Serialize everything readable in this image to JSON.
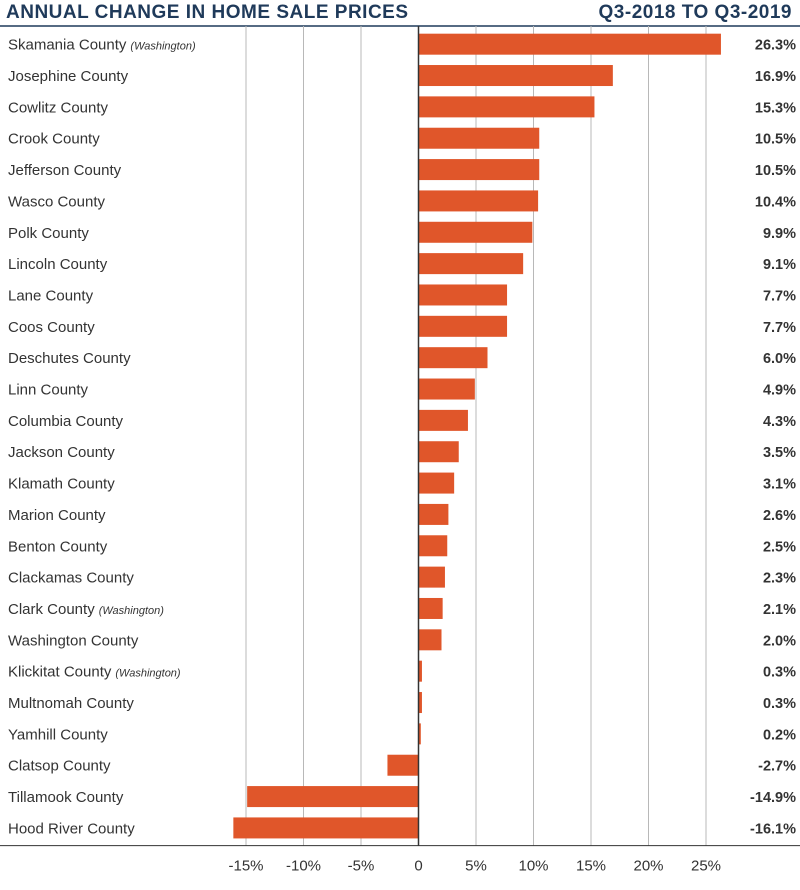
{
  "colors": {
    "bar": "#e0562a",
    "title": "#1f3a5a",
    "text": "#333333",
    "grid": "#b8b8b8",
    "axis": "#333333"
  },
  "chart_data": {
    "type": "bar",
    "orientation": "horizontal",
    "title": "ANNUAL CHANGE IN HOME SALE PRICES",
    "subtitle": "Q3-2018 TO Q3-2019",
    "xlabel": "",
    "ylabel": "",
    "xlim": [
      -17.5,
      29
    ],
    "grid": true,
    "categories": [
      {
        "name": "Skamania County",
        "note": "(Washington)"
      },
      {
        "name": "Josephine County",
        "note": ""
      },
      {
        "name": "Cowlitz County",
        "note": ""
      },
      {
        "name": "Crook County",
        "note": ""
      },
      {
        "name": "Jefferson County",
        "note": ""
      },
      {
        "name": "Wasco County",
        "note": ""
      },
      {
        "name": "Polk County",
        "note": ""
      },
      {
        "name": "Lincoln County",
        "note": ""
      },
      {
        "name": "Lane County",
        "note": ""
      },
      {
        "name": "Coos County",
        "note": ""
      },
      {
        "name": "Deschutes County",
        "note": ""
      },
      {
        "name": "Linn County",
        "note": ""
      },
      {
        "name": "Columbia County",
        "note": ""
      },
      {
        "name": "Jackson County",
        "note": ""
      },
      {
        "name": "Klamath County",
        "note": ""
      },
      {
        "name": "Marion County",
        "note": ""
      },
      {
        "name": "Benton County",
        "note": ""
      },
      {
        "name": "Clackamas County",
        "note": ""
      },
      {
        "name": "Clark County",
        "note": "(Washington)"
      },
      {
        "name": "Washington County",
        "note": ""
      },
      {
        "name": "Klickitat County",
        "note": "(Washington)"
      },
      {
        "name": "Multnomah County",
        "note": ""
      },
      {
        "name": "Yamhill County",
        "note": ""
      },
      {
        "name": "Clatsop County",
        "note": ""
      },
      {
        "name": "Tillamook County",
        "note": ""
      },
      {
        "name": "Hood River County",
        "note": ""
      }
    ],
    "values": [
      26.3,
      16.9,
      15.3,
      10.5,
      10.5,
      10.4,
      9.9,
      9.1,
      7.7,
      7.7,
      6.0,
      4.9,
      4.3,
      3.5,
      3.1,
      2.6,
      2.5,
      2.3,
      2.1,
      2.0,
      0.3,
      0.3,
      0.2,
      -2.7,
      -14.9,
      -16.1
    ],
    "value_labels": [
      "26.3%",
      "16.9%",
      "15.3%",
      "10.5%",
      "10.5%",
      "10.4%",
      "9.9%",
      "9.1%",
      "7.7%",
      "7.7%",
      "6.0%",
      "4.9%",
      "4.3%",
      "3.5%",
      "3.1%",
      "2.6%",
      "2.5%",
      "2.3%",
      "2.1%",
      "2.0%",
      "0.3%",
      "0.3%",
      "0.2%",
      "-2.7%",
      "-14.9%",
      "-16.1%"
    ],
    "ticks": [
      -15,
      -10,
      -5,
      0,
      5,
      10,
      15,
      20,
      25
    ],
    "tick_labels": [
      "-15%",
      "-10%",
      "-5%",
      "0",
      "5%",
      "10%",
      "15%",
      "20%",
      "25%"
    ]
  }
}
